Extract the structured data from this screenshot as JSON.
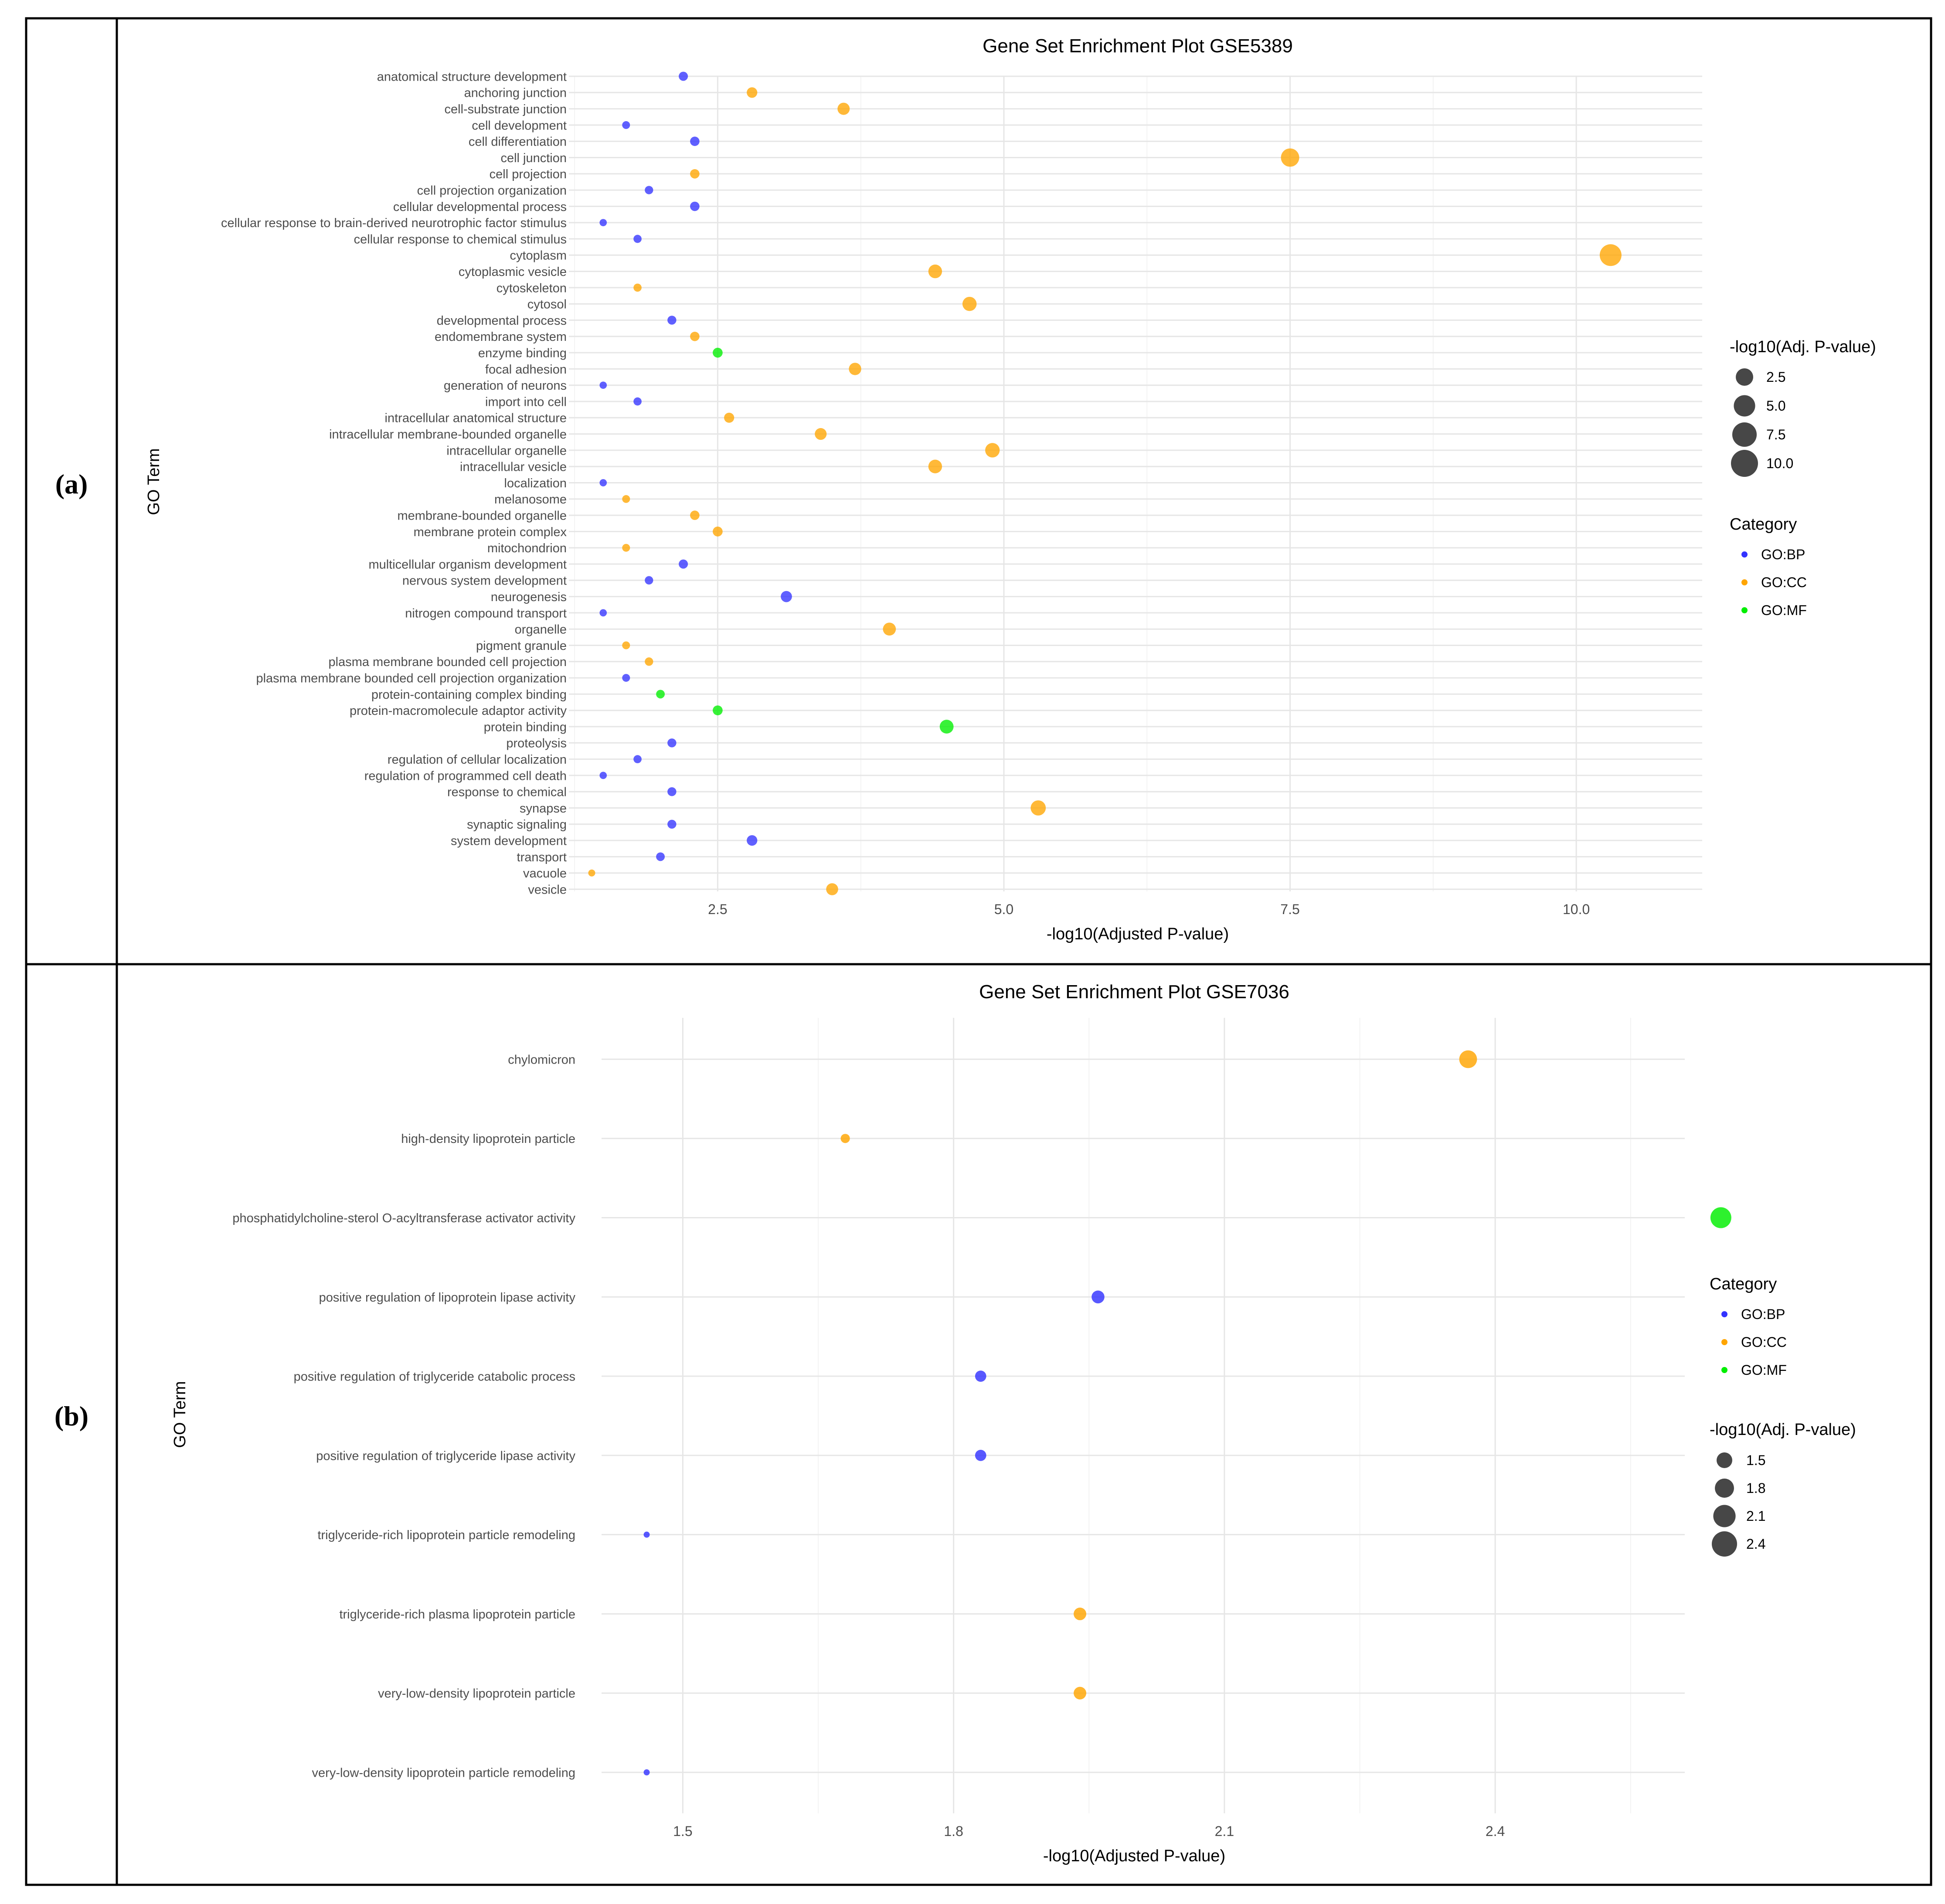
{
  "panels": [
    {
      "label": "(a)"
    },
    {
      "label": "(b)"
    }
  ],
  "colors": {
    "GO:BP": "#3333ff",
    "GO:CC": "#ffa500",
    "GO:MF": "#00ee00"
  },
  "chart_data": [
    {
      "type": "scatter",
      "title": "Gene Set Enrichment Plot GSE5389",
      "xlabel": "-log10(Adjusted P-value)",
      "ylabel": "GO Term",
      "xlim": [
        1.2,
        11.1
      ],
      "xticks": [
        2.5,
        5.0,
        7.5,
        10.0
      ],
      "grid": true,
      "legend_position": "right",
      "size_legend": {
        "title": "-log10(Adj. P-value)",
        "values": [
          2.5,
          5.0,
          7.5,
          10.0
        ],
        "labels": [
          "2.5",
          "5.0",
          "7.5",
          "10.0"
        ]
      },
      "color_legend": {
        "title": "Category",
        "entries": [
          "GO:BP",
          "GO:CC",
          "GO:MF"
        ]
      },
      "size_order": "first",
      "categories": [
        "anatomical structure development",
        "anchoring junction",
        "cell-substrate junction",
        "cell development",
        "cell differentiation",
        "cell junction",
        "cell projection",
        "cell projection organization",
        "cellular developmental process",
        "cellular response to brain-derived neurotrophic factor stimulus",
        "cellular response to chemical stimulus",
        "cytoplasm",
        "cytoplasmic vesicle",
        "cytoskeleton",
        "cytosol",
        "developmental process",
        "endomembrane system",
        "enzyme binding",
        "focal adhesion",
        "generation of neurons",
        "import into cell",
        "intracellular anatomical structure",
        "intracellular membrane-bounded organelle",
        "intracellular organelle",
        "intracellular vesicle",
        "localization",
        "melanosome",
        "membrane-bounded organelle",
        "membrane protein complex",
        "mitochondrion",
        "multicellular organism development",
        "nervous system development",
        "neurogenesis",
        "nitrogen compound transport",
        "organelle",
        "pigment granule",
        "plasma membrane bounded cell projection",
        "plasma membrane bounded cell projection organization",
        "protein-containing complex binding",
        "protein-macromolecule adaptor activity",
        "protein binding",
        "proteolysis",
        "regulation of cellular localization",
        "regulation of programmed cell death",
        "response to chemical",
        "synapse",
        "synaptic signaling",
        "system development",
        "transport",
        "vacuole",
        "vesicle"
      ],
      "x": [
        2.2,
        2.8,
        3.6,
        1.7,
        2.3,
        7.5,
        2.3,
        1.9,
        2.3,
        1.5,
        1.8,
        10.3,
        4.4,
        1.8,
        4.7,
        2.1,
        2.3,
        2.5,
        3.7,
        1.5,
        1.8,
        2.6,
        3.4,
        4.9,
        4.4,
        1.5,
        1.7,
        2.3,
        2.5,
        1.7,
        2.2,
        1.9,
        3.1,
        1.5,
        4.0,
        1.7,
        1.9,
        1.7,
        2.0,
        2.5,
        4.5,
        2.1,
        1.8,
        1.5,
        2.1,
        5.3,
        2.1,
        2.8,
        2.0,
        1.4,
        3.5
      ],
      "category": [
        "GO:BP",
        "GO:CC",
        "GO:CC",
        "GO:BP",
        "GO:BP",
        "GO:CC",
        "GO:CC",
        "GO:BP",
        "GO:BP",
        "GO:BP",
        "GO:BP",
        "GO:CC",
        "GO:CC",
        "GO:CC",
        "GO:CC",
        "GO:BP",
        "GO:CC",
        "GO:MF",
        "GO:CC",
        "GO:BP",
        "GO:BP",
        "GO:CC",
        "GO:CC",
        "GO:CC",
        "GO:CC",
        "GO:BP",
        "GO:CC",
        "GO:CC",
        "GO:CC",
        "GO:CC",
        "GO:BP",
        "GO:BP",
        "GO:BP",
        "GO:BP",
        "GO:CC",
        "GO:CC",
        "GO:CC",
        "GO:BP",
        "GO:MF",
        "GO:MF",
        "GO:MF",
        "GO:BP",
        "GO:BP",
        "GO:BP",
        "GO:BP",
        "GO:CC",
        "GO:BP",
        "GO:BP",
        "GO:BP",
        "GO:CC",
        "GO:CC"
      ]
    },
    {
      "type": "scatter",
      "title": "Gene Set Enrichment Plot GSE7036",
      "xlabel": "-log10(Adjusted P-value)",
      "ylabel": "GO Term",
      "xlim": [
        1.41,
        2.61
      ],
      "xticks": [
        1.5,
        1.8,
        2.1,
        2.4
      ],
      "grid": true,
      "legend_position": "right",
      "color_legend": {
        "title": "Category",
        "entries": [
          "GO:BP",
          "GO:CC",
          "GO:MF"
        ]
      },
      "size_legend": {
        "title": "-log10(Adj. P-value)",
        "values": [
          1.5,
          1.8,
          2.1,
          2.4
        ],
        "labels": [
          "1.5",
          "1.8",
          "2.1",
          "2.4"
        ]
      },
      "size_order": "second",
      "categories": [
        "chylomicron",
        "high-density lipoprotein particle",
        "phosphatidylcholine-sterol O-acyltransferase activator activity",
        "positive regulation of lipoprotein lipase activity",
        "positive regulation of triglyceride catabolic process",
        "positive regulation of triglyceride lipase activity",
        "triglyceride-rich lipoprotein particle remodeling",
        "triglyceride-rich plasma lipoprotein particle",
        "very-low-density lipoprotein particle",
        "very-low-density lipoprotein particle remodeling"
      ],
      "x": [
        2.37,
        1.68,
        2.65,
        1.96,
        1.83,
        1.83,
        1.46,
        1.94,
        1.94,
        1.46
      ],
      "category": [
        "GO:CC",
        "GO:CC",
        "GO:MF",
        "GO:BP",
        "GO:BP",
        "GO:BP",
        "GO:BP",
        "GO:CC",
        "GO:CC",
        "GO:BP"
      ]
    }
  ]
}
